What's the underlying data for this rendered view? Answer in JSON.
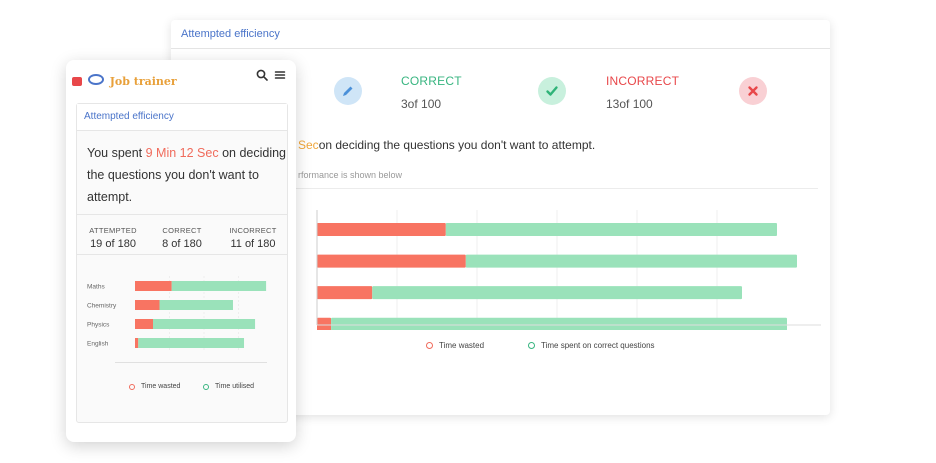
{
  "desktop": {
    "header_title": "Attempted efficiency",
    "correct": {
      "label": "CORRECT",
      "value": "3of  100",
      "color": "#38b580"
    },
    "incorrect": {
      "label": "INCORRECT",
      "value": "13of  100",
      "color": "#e8474a"
    },
    "sentence_highlight": "Sec",
    "sentence_rest": "on deciding the questions you don't want to attempt.",
    "subtitle": "rformance is shown below",
    "legend": {
      "wasted": "Time wasted",
      "correct": "Time spent on correct questions"
    },
    "chart_data": {
      "type": "bar",
      "orientation": "horizontal",
      "stacked": true,
      "series": [
        {
          "values": [
            0.28,
            0.31,
            0.13,
            0.03
          ],
          "color": "#f87462"
        },
        {
          "values": [
            0.72,
            0.69,
            0.87,
            0.97
          ],
          "color": "#9ae2ba"
        }
      ],
      "row_totals": [
        0.92,
        0.96,
        0.85,
        0.94
      ],
      "grid": true,
      "legend_position": "bottom"
    }
  },
  "mobile": {
    "logo_text": "Job trainer",
    "header_title": "Attempted efficiency",
    "spent_prefix": "You spent ",
    "spent_highlight": "9 Min 12 Sec",
    "spent_suffix": " on deciding the questions you don't want to attempt.",
    "stats": [
      {
        "label": "ATTEMPTED",
        "value": "19 of 180"
      },
      {
        "label": "CORRECT",
        "value": "8 of 180"
      },
      {
        "label": "INCORRECT",
        "value": "11 of 180"
      }
    ],
    "legend": {
      "wasted": "Time wasted",
      "utilised": "Time utilised"
    },
    "chart_data": {
      "type": "bar",
      "orientation": "horizontal",
      "stacked": true,
      "categories": [
        "Maths",
        "Chemistry",
        "Physics",
        "English"
      ],
      "series": [
        {
          "name": "Time wasted",
          "values": [
            0.28,
            0.25,
            0.15,
            0.03
          ],
          "color": "#f87462"
        },
        {
          "name": "Time utilised",
          "values": [
            0.72,
            0.75,
            0.85,
            0.97
          ],
          "color": "#9ae2ba"
        }
      ],
      "row_totals": [
        0.95,
        0.71,
        0.87,
        0.79
      ],
      "grid": true,
      "legend_position": "bottom"
    }
  },
  "icons": {
    "pencil": "pencil-icon",
    "check": "check-icon",
    "close": "close-icon",
    "search": "search-icon",
    "menu": "menu-icon"
  }
}
